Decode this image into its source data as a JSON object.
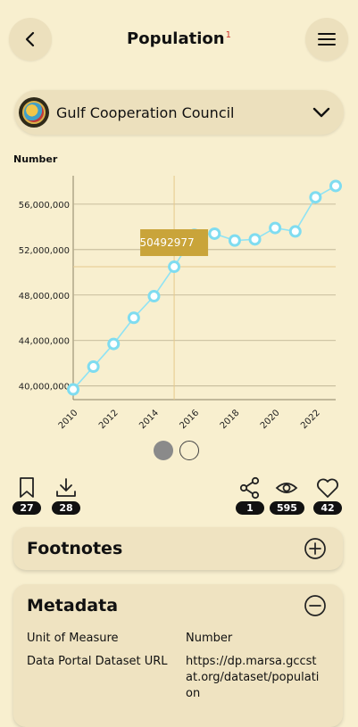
{
  "header": {
    "title": "Population",
    "title_sup": "1"
  },
  "selector": {
    "country": "Gulf Cooperation Council"
  },
  "chart_data": {
    "type": "line",
    "ylabel": "Number",
    "x": [
      2010,
      2011,
      2012,
      2013,
      2014,
      2015,
      2016,
      2017,
      2018,
      2019,
      2020,
      2021,
      2022,
      2023
    ],
    "values": [
      39700000,
      41700000,
      43700000,
      46000000,
      47900000,
      50492977,
      53300000,
      53400000,
      52800000,
      52900000,
      53900000,
      53600000,
      56600000,
      57600000
    ],
    "xticks": [
      "2010",
      "2012",
      "2014",
      "2016",
      "2018",
      "2020",
      "2022"
    ],
    "yticks": [
      "40,000,000",
      "44,000,000",
      "48,000,000",
      "52,000,000",
      "56,000,000"
    ],
    "ylim": [
      38800000,
      58500000
    ],
    "tooltip": {
      "x": 2015,
      "value": "50492977"
    },
    "colors": {
      "line": "#8fe3f4",
      "marker": "#7fdcf0",
      "tooltip": "#c9a43a",
      "crosshair": "#e6c98c"
    }
  },
  "pager": {
    "pages": 2,
    "active": 0
  },
  "stats": {
    "bookmarks": "27",
    "downloads": "28",
    "shares": "1",
    "views": "595",
    "likes": "42"
  },
  "footnotes": {
    "title": "Footnotes"
  },
  "metadata": {
    "title": "Metadata",
    "rows": [
      {
        "label": "Unit of Measure",
        "value": "Number"
      },
      {
        "label": "Data Portal Dataset URL",
        "value": "https://dp.marsa.gccstat.org/dataset/population"
      }
    ]
  }
}
